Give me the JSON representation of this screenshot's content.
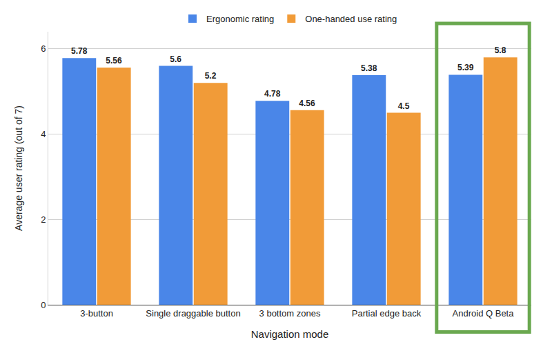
{
  "chart_data": {
    "type": "bar",
    "categories": [
      "3-button",
      "Single draggable button",
      "3 bottom zones",
      "Partial edge back",
      "Android Q Beta"
    ],
    "series": [
      {
        "name": "Ergonomic rating",
        "color": "#4a86e8",
        "values": [
          5.78,
          5.6,
          4.78,
          5.38,
          5.39
        ]
      },
      {
        "name": "One-handed use rating",
        "color": "#f19b38",
        "values": [
          5.56,
          5.2,
          4.56,
          4.5,
          5.8
        ]
      }
    ],
    "x_label": "Navigation mode",
    "y_label": "Average user rating (out of 7)",
    "ylim": [
      0,
      6.4
    ],
    "yticks": [
      0,
      2,
      4,
      6
    ],
    "grid": true,
    "legend": "top",
    "data_labels": true
  }
}
